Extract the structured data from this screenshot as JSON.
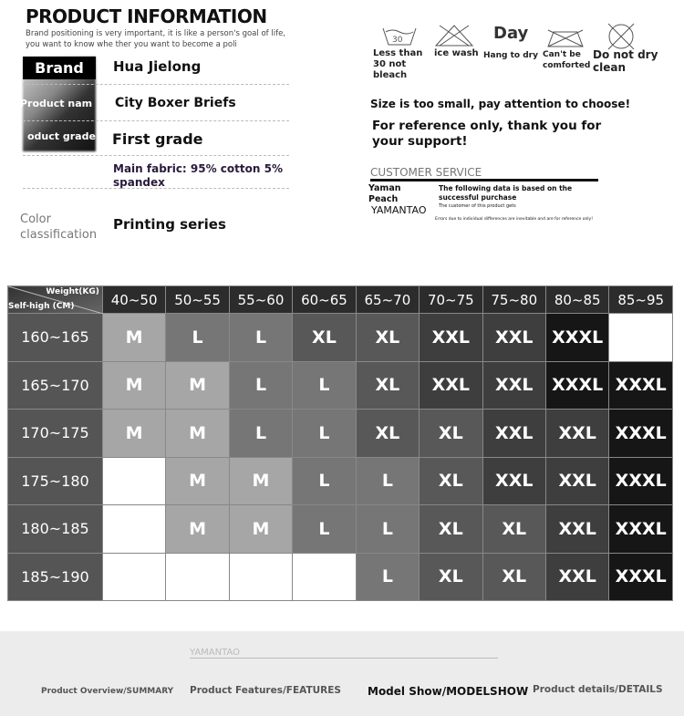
{
  "header": {
    "title": "PRODUCT INFORMATION",
    "subtitle": "Brand positioning is very important, it is like a person's goal of life, you want to know whe ther you want to become a poli"
  },
  "info": [
    {
      "label": "Brand",
      "value": "Hua Jielong"
    },
    {
      "label": "Product nam",
      "value": "City Boxer Briefs"
    },
    {
      "label": "oduct grade",
      "value": "First grade"
    },
    {
      "label": "",
      "value": "Main fabric: 95% cotton 5% spandex"
    },
    {
      "label": "Color classification",
      "value": "Printing series"
    }
  ],
  "care": [
    {
      "icon": "wash-30-icon",
      "num": "30",
      "label": "Less than 30 not bleach"
    },
    {
      "icon": "no-bleach-icon",
      "label": "ice wash"
    },
    {
      "icon": "day-text",
      "num": "Day",
      "label": "Hang to dry"
    },
    {
      "icon": "no-iron-icon",
      "label": "Can't be comforted"
    },
    {
      "icon": "no-dry-clean-icon",
      "label": "Do not dry clean"
    }
  ],
  "notes": {
    "size_warning": "Size is too small, pay attention to choose!",
    "reference": "For reference only, thank you for your support!"
  },
  "customer_service": {
    "title": "CUSTOMER SERVICE",
    "brand_lines": [
      "Yaman",
      "Peach",
      "YAMANTAO"
    ],
    "text1": "The following data is based on the successful purchase",
    "text2": "The customer of this product gets",
    "text3": "Errors due to individual differences are inevitable and are for reference only!"
  },
  "size_chart": {
    "corner_weight": "Weight(KG)",
    "corner_height": "Self-high (CM)",
    "weights": [
      "40~50",
      "50~55",
      "55~60",
      "60~65",
      "65~70",
      "70~75",
      "75~80",
      "80~85",
      "85~95"
    ],
    "rows": [
      {
        "height": "160~165",
        "sizes": [
          "M",
          "L",
          "L",
          "XL",
          "XL",
          "XXL",
          "XXL",
          "XXXL",
          ""
        ]
      },
      {
        "height": "165~170",
        "sizes": [
          "M",
          "M",
          "L",
          "L",
          "XL",
          "XXL",
          "XXL",
          "XXXL",
          "XXXL"
        ]
      },
      {
        "height": "170~175",
        "sizes": [
          "M",
          "M",
          "L",
          "L",
          "XL",
          "XL",
          "XXL",
          "XXL",
          "XXXL"
        ]
      },
      {
        "height": "175~180",
        "sizes": [
          "",
          "M",
          "M",
          "L",
          "L",
          "XL",
          "XXL",
          "XXL",
          "XXXL"
        ]
      },
      {
        "height": "180~185",
        "sizes": [
          "",
          "M",
          "M",
          "L",
          "L",
          "XL",
          "XL",
          "XXL",
          "XXXL"
        ]
      },
      {
        "height": "185~190",
        "sizes": [
          "",
          "",
          "",
          "",
          "L",
          "XL",
          "XL",
          "XXL",
          "XXXL"
        ]
      }
    ],
    "colors": {
      "M": "#a6a6a6",
      "L": "#767676",
      "XL": "#585858",
      "XXL": "#3e3e3e",
      "XXXL": "#161616",
      "": "#ffffff"
    }
  },
  "footer": {
    "brand": "YAMANTAO",
    "nav": [
      "Product Overview/SUMMARY",
      "Product Features/FEATURES",
      "Model Show/MODELSHOW",
      "Product details/DETAILS"
    ]
  }
}
